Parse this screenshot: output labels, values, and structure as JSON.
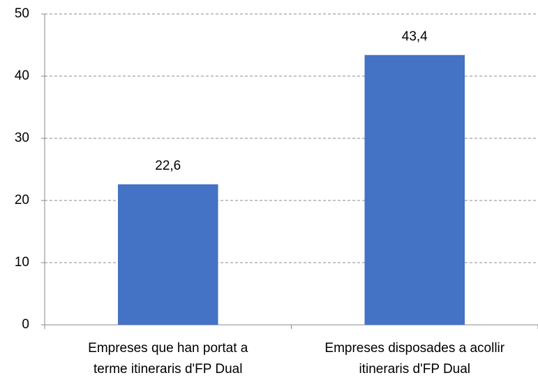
{
  "chart_data": {
    "type": "bar",
    "categories": [
      "Empreses que han portat a\nterme itineraris d'FP Dual",
      "Empreses disposades a acollir\nitineraris d'FP Dual"
    ],
    "values": [
      22.6,
      43.4
    ],
    "value_labels": [
      "22,6",
      "43,4"
    ],
    "color": "#4472c4",
    "ylim": [
      0,
      50
    ],
    "yticks": [
      0,
      10,
      20,
      30,
      40,
      50
    ],
    "grid": true
  }
}
